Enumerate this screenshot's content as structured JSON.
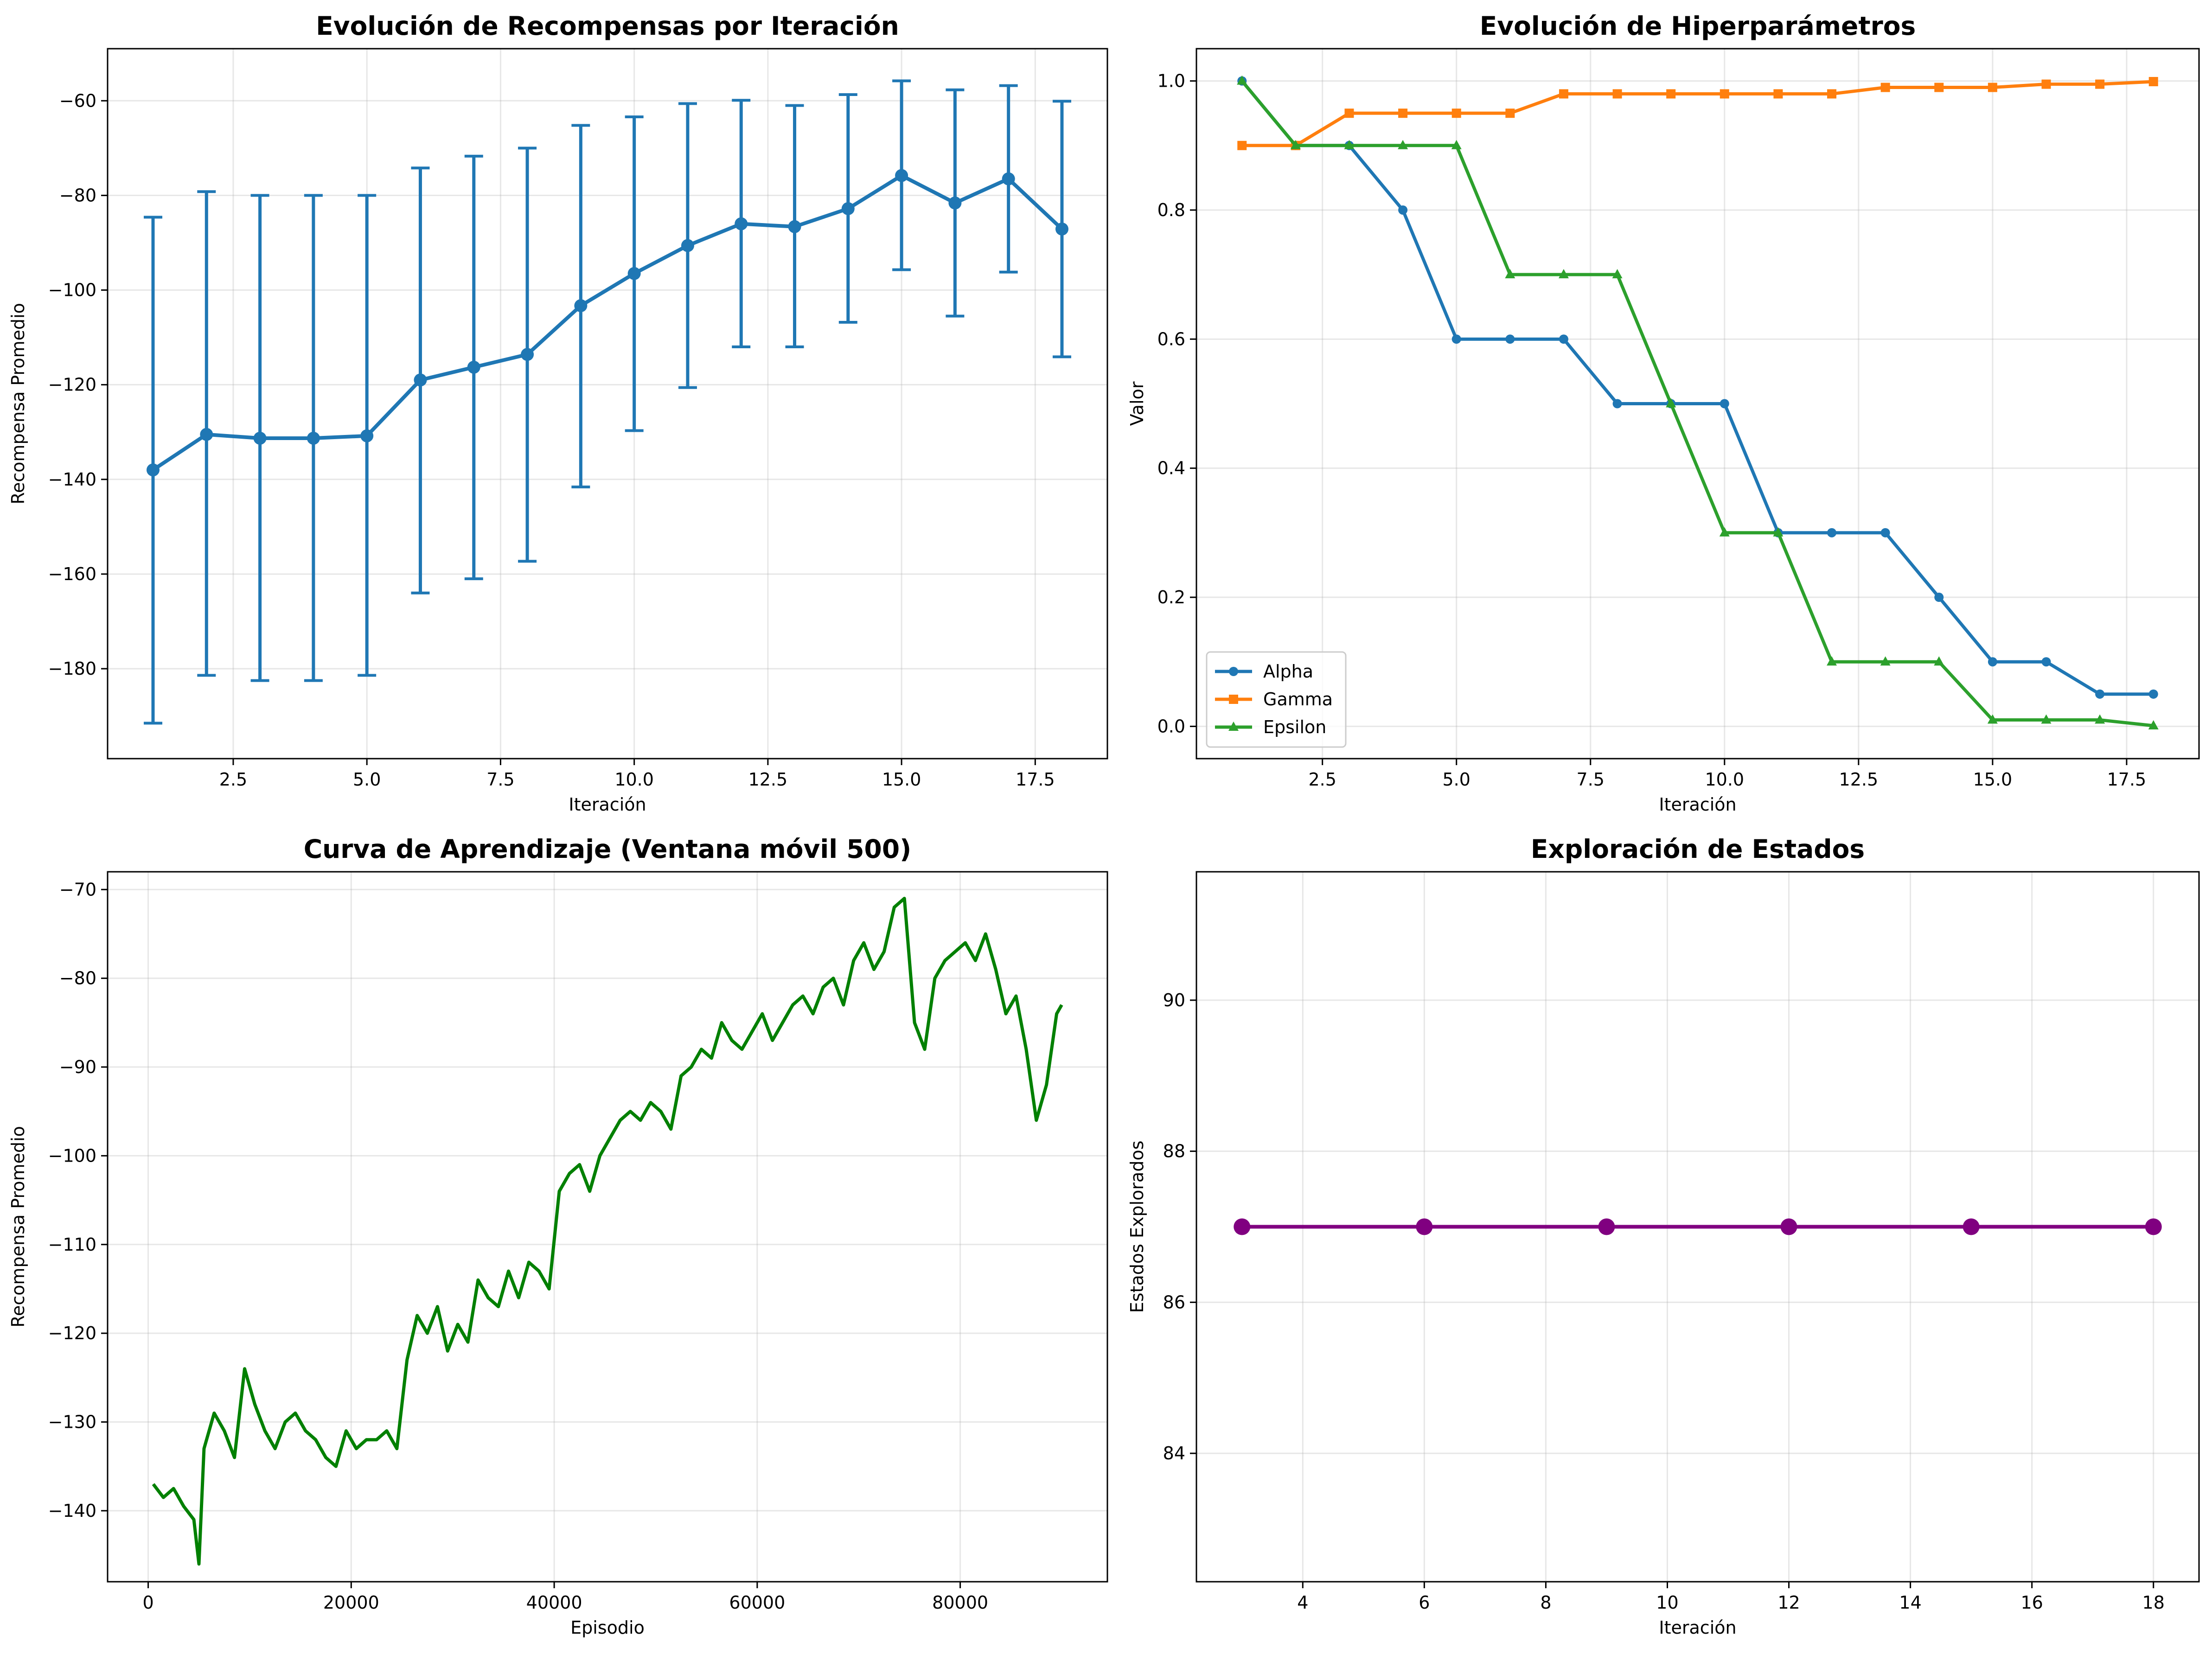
{
  "chart_data": [
    {
      "type": "line",
      "title": "Evolución de Recompensas por Iteración",
      "xlabel": "Iteración",
      "ylabel": "Recompensa Promedio",
      "xlim": [
        0.15,
        18.85
      ],
      "ylim": [
        -199,
        -49
      ],
      "xticks": [
        2.5,
        5.0,
        7.5,
        10.0,
        12.5,
        15.0,
        17.5
      ],
      "xtick_labels": [
        "2.5",
        "5.0",
        "7.5",
        "10.0",
        "12.5",
        "15.0",
        "17.5"
      ],
      "yticks": [
        -180,
        -160,
        -140,
        -120,
        -100,
        -80,
        -60
      ],
      "ytick_labels": [
        "−180",
        "−160",
        "−140",
        "−120",
        "−100",
        "−80",
        "−60"
      ],
      "grid": true,
      "error_bars": true,
      "color": "#1f77b4",
      "x": [
        1,
        2,
        3,
        4,
        5,
        6,
        7,
        8,
        9,
        10,
        11,
        12,
        13,
        14,
        15,
        16,
        17,
        18
      ],
      "y": [
        -138,
        -130.5,
        -131.3,
        -131.3,
        -130.8,
        -119,
        -116.3,
        -113.6,
        -103.3,
        -96.5,
        -90.6,
        -86,
        -86.6,
        -82.8,
        -75.8,
        -81.6,
        -76.5,
        -87.1
      ],
      "yerr_low": [
        -191.5,
        -181.4,
        -182.5,
        -182.5,
        -181.4,
        -164,
        -161,
        -157.3,
        -141.6,
        -129.7,
        -120.6,
        -112,
        -112,
        -106.8,
        -95.7,
        -105.5,
        -96.2,
        -114.1
      ],
      "yerr_high": [
        -84.6,
        -79.2,
        -80,
        -80,
        -80,
        -74.2,
        -71.7,
        -70,
        -65.2,
        -63.4,
        -60.6,
        -59.9,
        -61,
        -58.7,
        -55.8,
        -57.7,
        -56.8,
        -60.1
      ]
    },
    {
      "type": "line",
      "title": "Evolución de Hiperparámetros",
      "xlabel": "Iteración",
      "ylabel": "Valor",
      "xlim": [
        0.15,
        18.85
      ],
      "ylim": [
        -0.05,
        1.05
      ],
      "xticks": [
        2.5,
        5.0,
        7.5,
        10.0,
        12.5,
        15.0,
        17.5
      ],
      "xtick_labels": [
        "2.5",
        "5.0",
        "7.5",
        "10.0",
        "12.5",
        "15.0",
        "17.5"
      ],
      "yticks": [
        0.0,
        0.2,
        0.4,
        0.6,
        0.8,
        1.0
      ],
      "ytick_labels": [
        "0.0",
        "0.2",
        "0.4",
        "0.6",
        "0.8",
        "1.0"
      ],
      "grid": true,
      "legend": "lower-left",
      "x": [
        1,
        2,
        3,
        4,
        5,
        6,
        7,
        8,
        9,
        10,
        11,
        12,
        13,
        14,
        15,
        16,
        17,
        18
      ],
      "series": [
        {
          "name": "Alpha",
          "color": "#1f77b4",
          "marker": "circle",
          "values": [
            1.0,
            0.9,
            0.9,
            0.8,
            0.6,
            0.6,
            0.6,
            0.5,
            0.5,
            0.5,
            0.3,
            0.3,
            0.3,
            0.2,
            0.1,
            0.1,
            0.05,
            0.05
          ]
        },
        {
          "name": "Gamma",
          "color": "#ff7f0e",
          "marker": "square",
          "values": [
            0.9,
            0.9,
            0.95,
            0.95,
            0.95,
            0.95,
            0.98,
            0.98,
            0.98,
            0.98,
            0.98,
            0.98,
            0.99,
            0.99,
            0.99,
            0.995,
            0.995,
            0.999
          ]
        },
        {
          "name": "Epsilon",
          "color": "#2ca02c",
          "marker": "triangle",
          "values": [
            1.0,
            0.9,
            0.9,
            0.9,
            0.9,
            0.7,
            0.7,
            0.7,
            0.5,
            0.3,
            0.3,
            0.1,
            0.1,
            0.1,
            0.01,
            0.01,
            0.01,
            0.001
          ]
        }
      ]
    },
    {
      "type": "line",
      "title": "Curva de Aprendizaje (Ventana móvil 500)",
      "xlabel": "Episodio",
      "ylabel": "Recompensa Promedio",
      "xlim": [
        -4000,
        94500
      ],
      "ylim": [
        -148,
        -68
      ],
      "xticks": [
        0,
        20000,
        40000,
        60000,
        80000
      ],
      "xtick_labels": [
        "0",
        "20000",
        "40000",
        "60000",
        "80000"
      ],
      "yticks": [
        -140,
        -130,
        -120,
        -110,
        -100,
        -90,
        -80,
        -70
      ],
      "ytick_labels": [
        "−140",
        "−130",
        "−120",
        "−110",
        "−100",
        "−90",
        "−80",
        "−70"
      ],
      "grid": true,
      "color": "#008000",
      "x": [
        500,
        1500,
        2500,
        3500,
        4500,
        5000,
        5500,
        6500,
        7500,
        8500,
        9500,
        10500,
        11500,
        12500,
        13500,
        14500,
        15500,
        16500,
        17500,
        18500,
        19500,
        20500,
        21500,
        22500,
        23500,
        24500,
        25500,
        26500,
        27500,
        28500,
        29500,
        30500,
        31500,
        32500,
        33500,
        34500,
        35500,
        36500,
        37500,
        38500,
        39500,
        40500,
        41500,
        42500,
        43500,
        44500,
        45500,
        46500,
        47500,
        48500,
        49500,
        50500,
        51500,
        52500,
        53500,
        54500,
        55500,
        56500,
        57500,
        58500,
        59500,
        60500,
        61500,
        62500,
        63500,
        64500,
        65500,
        66500,
        67500,
        68500,
        69500,
        70500,
        71500,
        72500,
        73500,
        74500,
        75500,
        76500,
        77500,
        78500,
        79500,
        80500,
        81500,
        82500,
        83500,
        84500,
        85500,
        86500,
        87500,
        88500,
        89500,
        90000
      ],
      "y": [
        -137,
        -138.5,
        -137.5,
        -139.5,
        -141,
        -146,
        -133,
        -129,
        -131,
        -134,
        -124,
        -128,
        -131,
        -133,
        -130,
        -129,
        -131,
        -132,
        -134,
        -135,
        -131,
        -133,
        -132,
        -132,
        -131,
        -133,
        -123,
        -118,
        -120,
        -117,
        -122,
        -119,
        -121,
        -114,
        -116,
        -117,
        -113,
        -116,
        -112,
        -113,
        -115,
        -104,
        -102,
        -101,
        -104,
        -100,
        -98,
        -96,
        -95,
        -96,
        -94,
        -95,
        -97,
        -91,
        -90,
        -88,
        -89,
        -85,
        -87,
        -88,
        -86,
        -84,
        -87,
        -85,
        -83,
        -82,
        -84,
        -81,
        -80,
        -83,
        -78,
        -76,
        -79,
        -77,
        -72,
        -71,
        -85,
        -88,
        -80,
        -78,
        -77,
        -76,
        -78,
        -75,
        -79,
        -84,
        -82,
        -88,
        -96,
        -92,
        -84,
        -83
      ]
    },
    {
      "type": "line",
      "title": "Exploración de Estados",
      "xlabel": "Iteración",
      "ylabel": "Estados Explorados",
      "xlim": [
        2.25,
        18.75
      ],
      "ylim": [
        82.3,
        91.7
      ],
      "xticks": [
        4,
        6,
        8,
        10,
        12,
        14,
        16,
        18
      ],
      "xtick_labels": [
        "4",
        "6",
        "8",
        "10",
        "12",
        "14",
        "16",
        "18"
      ],
      "yticks": [
        84,
        86,
        88,
        90
      ],
      "ytick_labels": [
        "84",
        "86",
        "88",
        "90"
      ],
      "grid": true,
      "color": "#800080",
      "x": [
        3,
        6,
        9,
        12,
        15,
        18
      ],
      "y": [
        87,
        87,
        87,
        87,
        87,
        87
      ]
    }
  ]
}
